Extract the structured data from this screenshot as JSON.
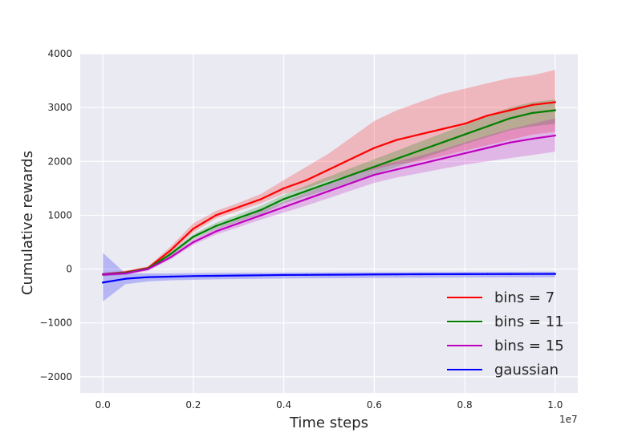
{
  "chart_data": {
    "type": "line",
    "xlabel": "Time steps",
    "ylabel": "Cumulative rewards",
    "x_offset_label": "1e7",
    "xlim": [
      -0.05,
      1.05
    ],
    "ylim": [
      -2300,
      4000
    ],
    "x_ticks": [
      0.0,
      0.2,
      0.4,
      0.6,
      0.8,
      1.0
    ],
    "x_tick_labels": [
      "0.0",
      "0.2",
      "0.4",
      "0.6",
      "0.8",
      "1.0"
    ],
    "y_ticks": [
      -2000,
      -1000,
      0,
      1000,
      2000,
      3000,
      4000
    ],
    "y_tick_labels": [
      "−2000",
      "−1000",
      "0",
      "1000",
      "2000",
      "3000",
      "4000"
    ],
    "grid": true,
    "legend_position": "lower-right",
    "x": [
      0.0,
      0.05,
      0.1,
      0.15,
      0.2,
      0.25,
      0.3,
      0.35,
      0.4,
      0.45,
      0.5,
      0.55,
      0.6,
      0.65,
      0.7,
      0.75,
      0.8,
      0.85,
      0.9,
      0.95,
      1.0
    ],
    "series": [
      {
        "name": "bins = 7",
        "color": "#ff0000",
        "values": [
          -100,
          -60,
          20,
          350,
          750,
          1000,
          1150,
          1300,
          1500,
          1650,
          1850,
          2050,
          2250,
          2400,
          2500,
          2600,
          2700,
          2850,
          2950,
          3050,
          3100
        ],
        "lower": [
          -130,
          -90,
          -10,
          300,
          680,
          940,
          1080,
          1220,
          1400,
          1500,
          1650,
          1750,
          1850,
          1950,
          2000,
          2100,
          2200,
          2300,
          2400,
          2500,
          2550
        ],
        "upper": [
          -70,
          -30,
          50,
          420,
          850,
          1080,
          1230,
          1400,
          1650,
          1900,
          2150,
          2450,
          2750,
          2950,
          3100,
          3250,
          3350,
          3450,
          3550,
          3600,
          3700
        ]
      },
      {
        "name": "bins = 11",
        "color": "#008000",
        "values": [
          -100,
          -70,
          10,
          280,
          600,
          800,
          950,
          1100,
          1300,
          1450,
          1600,
          1750,
          1900,
          2050,
          2200,
          2350,
          2500,
          2650,
          2800,
          2900,
          2950
        ],
        "lower": [
          -130,
          -100,
          -20,
          240,
          550,
          740,
          880,
          1020,
          1220,
          1350,
          1480,
          1620,
          1760,
          1900,
          2040,
          2180,
          2320,
          2450,
          2580,
          2650,
          2700
        ],
        "upper": [
          -70,
          -40,
          40,
          320,
          650,
          860,
          1020,
          1180,
          1380,
          1550,
          1720,
          1880,
          2040,
          2200,
          2360,
          2520,
          2680,
          2850,
          3000,
          3100,
          3150
        ]
      },
      {
        "name": "bins = 15",
        "color": "#bf00bf",
        "values": [
          -100,
          -80,
          0,
          220,
          500,
          700,
          850,
          1000,
          1150,
          1300,
          1450,
          1600,
          1750,
          1850,
          1950,
          2050,
          2150,
          2250,
          2350,
          2420,
          2480
        ],
        "lower": [
          -130,
          -110,
          -30,
          180,
          450,
          640,
          780,
          920,
          1050,
          1180,
          1320,
          1460,
          1600,
          1700,
          1780,
          1860,
          1940,
          2000,
          2060,
          2120,
          2180
        ],
        "upper": [
          -70,
          -50,
          30,
          260,
          550,
          760,
          920,
          1080,
          1250,
          1420,
          1580,
          1740,
          1900,
          2000,
          2100,
          2220,
          2350,
          2480,
          2600,
          2700,
          2800
        ]
      },
      {
        "name": "gaussian",
        "color": "#0000ff",
        "values": [
          -250,
          -180,
          -150,
          -140,
          -130,
          -125,
          -120,
          -115,
          -110,
          -108,
          -105,
          -103,
          -100,
          -98,
          -96,
          -95,
          -94,
          -93,
          -92,
          -91,
          -90
        ],
        "lower": [
          -600,
          -280,
          -230,
          -210,
          -200,
          -190,
          -185,
          -180,
          -175,
          -172,
          -170,
          -168,
          -165,
          -163,
          -160,
          -158,
          -156,
          -155,
          -154,
          -153,
          -152
        ],
        "upper": [
          300,
          -80,
          -80,
          -80,
          -75,
          -72,
          -70,
          -68,
          -66,
          -64,
          -62,
          -60,
          -58,
          -56,
          -55,
          -54,
          -53,
          -52,
          -51,
          -50,
          -50
        ]
      }
    ]
  }
}
